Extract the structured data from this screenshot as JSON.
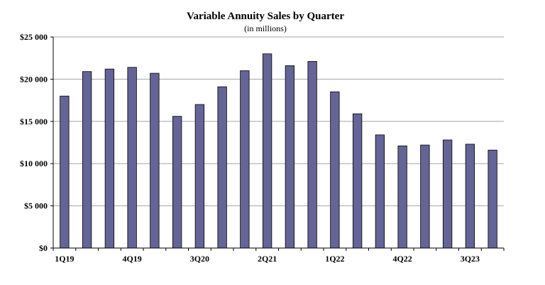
{
  "chart_data": {
    "type": "bar",
    "title": "Variable Annuity Sales by Quarter",
    "subtitle": "(in millions)",
    "xlabel": "",
    "ylabel": "",
    "ylim": [
      0,
      25000
    ],
    "grid": true,
    "legend": "none",
    "bar_color": "#646496",
    "yticks": [
      "$0",
      "$5 000",
      "$10 000",
      "$15 000",
      "$20 000",
      "$25 000"
    ],
    "categories": [
      "1Q19",
      "2Q19",
      "3Q19",
      "4Q19",
      "1Q20",
      "2Q20",
      "3Q20",
      "4Q20",
      "1Q21",
      "2Q21",
      "3Q21",
      "4Q21",
      "1Q22",
      "2Q22",
      "3Q22",
      "4Q22",
      "1Q23",
      "2Q23",
      "3Q23",
      "4Q23"
    ],
    "shown_labels": [
      "1Q19",
      "4Q19",
      "3Q20",
      "2Q21",
      "1Q22",
      "4Q22",
      "3Q23"
    ],
    "values": [
      18000,
      20900,
      21200,
      21400,
      20700,
      15600,
      17000,
      19100,
      21000,
      23000,
      21600,
      22100,
      18500,
      15900,
      13400,
      12100,
      12200,
      12800,
      12300,
      11600
    ]
  }
}
